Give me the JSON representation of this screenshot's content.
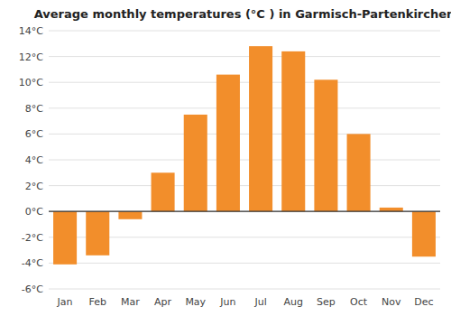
{
  "chart_data": {
    "type": "bar",
    "title": "Average monthly temperatures (°C ) in Garmisch-Partenkirchen",
    "categories": [
      "Jan",
      "Feb",
      "Mar",
      "Apr",
      "May",
      "Jun",
      "Jul",
      "Aug",
      "Sep",
      "Oct",
      "Nov",
      "Dec"
    ],
    "values": [
      -4.1,
      -3.4,
      -0.6,
      3.0,
      7.5,
      10.6,
      12.8,
      12.4,
      10.2,
      6.0,
      0.3,
      -3.5
    ],
    "ylim": [
      -6,
      14
    ],
    "yticks": [
      {
        "value": -6,
        "label": "-6°C"
      },
      {
        "value": -4,
        "label": "-4°C"
      },
      {
        "value": -2,
        "label": "-2°C"
      },
      {
        "value": 0,
        "label": "0°C"
      },
      {
        "value": 2,
        "label": "2°C"
      },
      {
        "value": 4,
        "label": "4°C"
      },
      {
        "value": 6,
        "label": "6°C"
      },
      {
        "value": 8,
        "label": "8°C"
      },
      {
        "value": 10,
        "label": "10°C"
      },
      {
        "value": 12,
        "label": "12°C"
      },
      {
        "value": 14,
        "label": "14°C"
      }
    ],
    "grid": true
  }
}
